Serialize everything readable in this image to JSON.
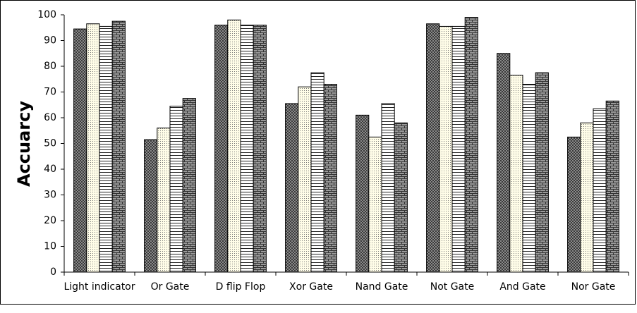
{
  "chart_data": {
    "type": "bar",
    "title": "",
    "xlabel": "",
    "ylabel": "Accuarcy",
    "ylim": [
      0,
      100
    ],
    "yticks": [
      0,
      10,
      20,
      30,
      40,
      50,
      60,
      70,
      80,
      90,
      100
    ],
    "grid": false,
    "legend": "none",
    "categories": [
      "Light indicator",
      "Or Gate",
      "D flip Flop",
      "Xor Gate",
      "Nand Gate",
      "Not Gate",
      "And Gate",
      "Nor Gate"
    ],
    "series": [
      {
        "pattern": "dark-checker",
        "values": [
          94.5,
          51.5,
          96,
          65.5,
          61,
          96.5,
          85,
          52.5
        ]
      },
      {
        "pattern": "light-dotted",
        "values": [
          96.5,
          56,
          98,
          72,
          52.5,
          95.5,
          76.5,
          58
        ]
      },
      {
        "pattern": "horizontal-lines",
        "values": [
          95.5,
          64.5,
          96,
          77.5,
          65.5,
          95.5,
          73,
          63.5
        ]
      },
      {
        "pattern": "brick",
        "values": [
          97.5,
          67.5,
          96,
          73,
          58,
          99,
          77.5,
          66.5
        ]
      }
    ]
  }
}
